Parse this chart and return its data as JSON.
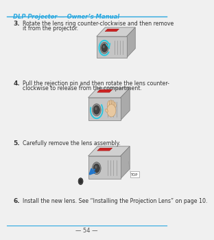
{
  "bg_color": "#f0f0f0",
  "header_text": "DLP Projector — Owner’s Manual",
  "header_color": "#29a8e0",
  "header_line_color": "#29a8e0",
  "footer_text": "— 54 —",
  "footer_line_color": "#29a8e0",
  "step3_num": "3.",
  "step3_line1": "Rotate the lens ring counter-clockwise and then remove",
  "step3_line2": "it from the projector.",
  "step4_num": "4.",
  "step4_line1": "Pull the rejection pin and then rotate the lens counter-",
  "step4_line2": "clockwise to release from the compartment.",
  "step5_num": "5.",
  "step5_line1": "Carefully remove the lens assembly.",
  "step6_num": "6.",
  "step6_line1": "Install the new lens. See “Installing the Projection Lens” on page 10."
}
